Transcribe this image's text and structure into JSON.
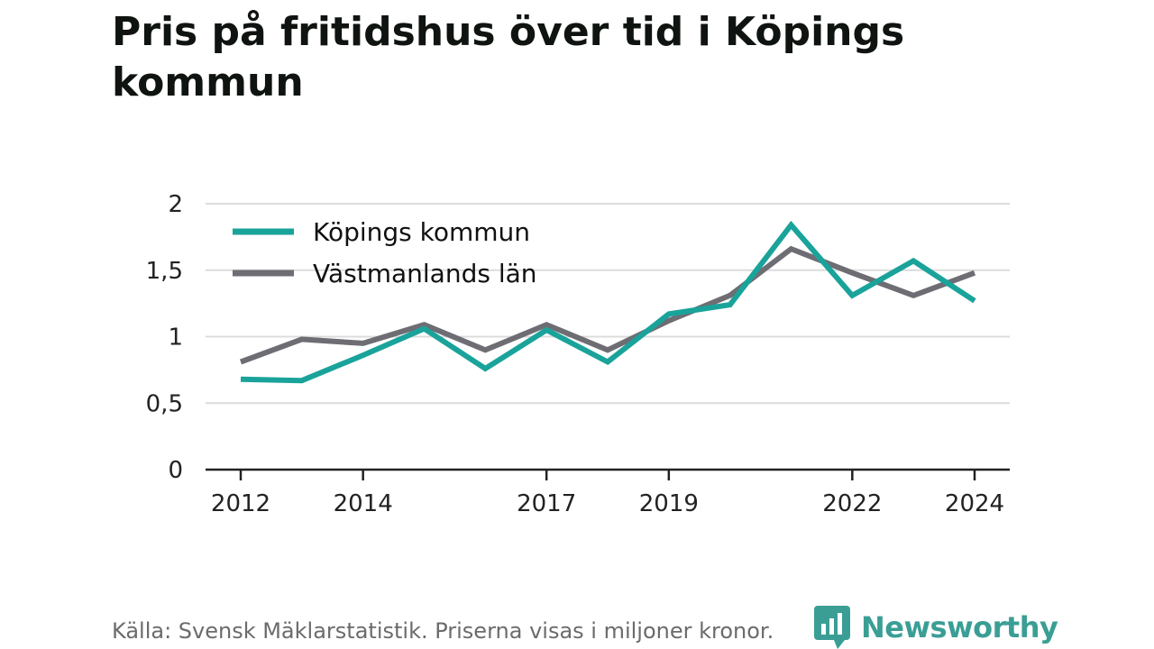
{
  "chart_data": {
    "type": "line",
    "title": "Pris på fritidshus över tid i Köpings kommun",
    "x": [
      2012,
      2013,
      2014,
      2015,
      2016,
      2017,
      2018,
      2019,
      2020,
      2021,
      2022,
      2023,
      2024
    ],
    "x_tick_labels": [
      "2012",
      "2014",
      "2017",
      "2019",
      "2022",
      "2024"
    ],
    "x_tick_values": [
      2012,
      2014,
      2017,
      2019,
      2022,
      2024
    ],
    "y_tick_labels": [
      "0",
      "0,5",
      "1",
      "1,5",
      "2"
    ],
    "y_tick_values": [
      0,
      0.5,
      1,
      1.5,
      2
    ],
    "ylim": [
      0,
      2
    ],
    "xlim": [
      2012,
      2024
    ],
    "grid": true,
    "legend_position": "top-left",
    "series": [
      {
        "name": "Köpings kommun",
        "color": "#1aa39a",
        "values": [
          0.68,
          0.67,
          0.86,
          1.06,
          0.76,
          1.05,
          0.81,
          1.17,
          1.24,
          1.84,
          1.31,
          1.57,
          1.27
        ]
      },
      {
        "name": "Västmanlands län",
        "color": "#6e6d73",
        "values": [
          0.81,
          0.98,
          0.95,
          1.09,
          0.9,
          1.09,
          0.9,
          1.12,
          1.31,
          1.66,
          1.48,
          1.31,
          1.48
        ]
      }
    ]
  },
  "footer": {
    "source": "Källa: Svensk Mäklarstatistik. Priserna visas i miljoner kronor.",
    "brand": "Newsworthy",
    "brand_color": "#3a9e95",
    "brand_icon": "bar-chart-speech-bubble-icon"
  }
}
